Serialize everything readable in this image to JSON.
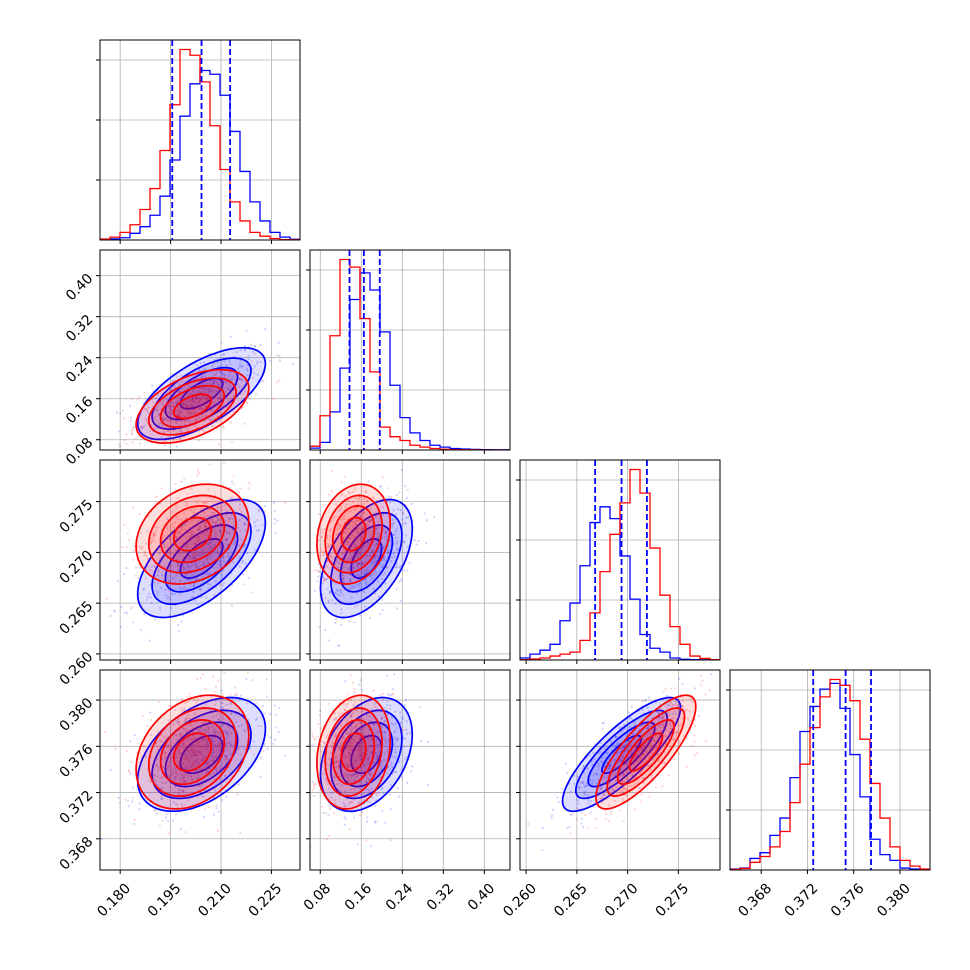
{
  "chart_data": {
    "type": "corner",
    "grid": true,
    "colors": {
      "series_a": "#0000ff",
      "series_b": "#ff0000",
      "quantile_lines": "#0000ff"
    },
    "series": [
      {
        "color": "#0000ff"
      },
      {
        "color": "#ff0000"
      }
    ],
    "parameters": [
      {
        "range": [
          0.174,
          0.2335
        ],
        "ticks": [
          0.18,
          0.195,
          0.21,
          0.225
        ],
        "tick_labels": [
          "0.180",
          "0.195",
          "0.210",
          "0.225"
        ],
        "quantiles": [
          0.1955,
          0.2042,
          0.2127
        ]
      },
      {
        "range": [
          0.06,
          0.45
        ],
        "ticks": [
          0.08,
          0.16,
          0.24,
          0.32,
          0.4
        ],
        "tick_labels": [
          "0.08",
          "0.16",
          "0.24",
          "0.32",
          "0.40"
        ],
        "quantiles": [
          0.137,
          0.165,
          0.196
        ]
      },
      {
        "range": [
          0.2594,
          0.2791
        ],
        "ticks": [
          0.26,
          0.265,
          0.27,
          0.275
        ],
        "tick_labels": [
          "0.260",
          "0.265",
          "0.270",
          "0.275"
        ],
        "quantiles": [
          0.2668,
          0.2694,
          0.2719
        ]
      },
      {
        "range": [
          0.3653,
          0.3826
        ],
        "ticks": [
          0.368,
          0.372,
          0.376,
          0.38
        ],
        "tick_labels": [
          "0.368",
          "0.372",
          "0.376",
          "0.380"
        ],
        "quantiles": [
          0.3725,
          0.3753,
          0.3775
        ]
      }
    ],
    "marginals": [
      {
        "edges_min": 0.174,
        "edges_max": 0.2335,
        "series_a": [
          0.002,
          0.006,
          0.012,
          0.035,
          0.07,
          0.13,
          0.23,
          0.42,
          0.65,
          0.82,
          0.89,
          0.87,
          0.76,
          0.57,
          0.36,
          0.2,
          0.1,
          0.04,
          0.015,
          0.004
        ],
        "series_b": [
          0.005,
          0.015,
          0.04,
          0.08,
          0.16,
          0.27,
          0.47,
          0.71,
          1.0,
          0.97,
          0.83,
          0.6,
          0.37,
          0.2,
          0.1,
          0.04,
          0.02,
          0.008,
          0.002,
          0.001
        ]
      },
      {
        "edges_min": 0.06,
        "edges_max": 0.45,
        "series_a": [
          0.01,
          0.04,
          0.2,
          0.43,
          0.79,
          0.93,
          0.84,
          0.62,
          0.34,
          0.17,
          0.09,
          0.05,
          0.025,
          0.015,
          0.008,
          0.005,
          0.003,
          0.002,
          0.001,
          0.001
        ],
        "series_b": [
          0.02,
          0.18,
          0.6,
          1.0,
          0.96,
          0.69,
          0.41,
          0.12,
          0.07,
          0.05,
          0.025,
          0.015,
          0.008,
          0.004,
          0.002,
          0.001,
          0.001,
          0.0,
          0.0,
          0.0
        ]
      },
      {
        "edges_min": 0.2594,
        "edges_max": 0.2791,
        "series_a": [
          0.01,
          0.03,
          0.05,
          0.08,
          0.2,
          0.29,
          0.48,
          0.7,
          0.78,
          0.72,
          0.53,
          0.31,
          0.13,
          0.06,
          0.04,
          0.01,
          0.004,
          0.002,
          0.001,
          0.0
        ],
        "series_b": [
          0.002,
          0.005,
          0.01,
          0.02,
          0.03,
          0.04,
          0.1,
          0.24,
          0.45,
          0.64,
          0.8,
          0.97,
          0.85,
          0.57,
          0.33,
          0.17,
          0.08,
          0.02,
          0.008,
          0.002
        ]
      },
      {
        "edges_min": 0.3653,
        "edges_max": 0.3826,
        "series_a": [
          0.005,
          0.01,
          0.06,
          0.09,
          0.18,
          0.27,
          0.48,
          0.72,
          0.85,
          0.94,
          0.97,
          0.84,
          0.6,
          0.38,
          0.16,
          0.08,
          0.05,
          0.01,
          0.005,
          0.002
        ],
        "series_b": [
          0.003,
          0.008,
          0.04,
          0.07,
          0.12,
          0.2,
          0.35,
          0.55,
          0.74,
          0.9,
          0.99,
          0.96,
          0.88,
          0.68,
          0.45,
          0.27,
          0.12,
          0.05,
          0.02,
          0.005
        ]
      }
    ],
    "joints": {
      "series_a": {
        "mean": [
          0.2042,
          0.17,
          0.2694,
          0.3753
        ],
        "sd": [
          0.0085,
          0.04,
          0.0026,
          0.0022
        ],
        "corr": [
          [
            1,
            0.65,
            0.6,
            0.45
          ],
          [
            0.65,
            1,
            0.5,
            0.35
          ],
          [
            0.6,
            0.5,
            1,
            0.82
          ],
          [
            0.45,
            0.35,
            0.82,
            1
          ]
        ]
      },
      "series_b": {
        "mean": [
          0.2015,
          0.145,
          0.2718,
          0.3755
        ],
        "sd": [
          0.0075,
          0.032,
          0.0022,
          0.0022
        ],
        "corr": [
          [
            1,
            0.5,
            0.25,
            0.3
          ],
          [
            0.5,
            1,
            0.2,
            0.2
          ],
          [
            0.25,
            0.2,
            1,
            0.8
          ],
          [
            0.3,
            0.2,
            0.8,
            1
          ]
        ]
      }
    }
  }
}
